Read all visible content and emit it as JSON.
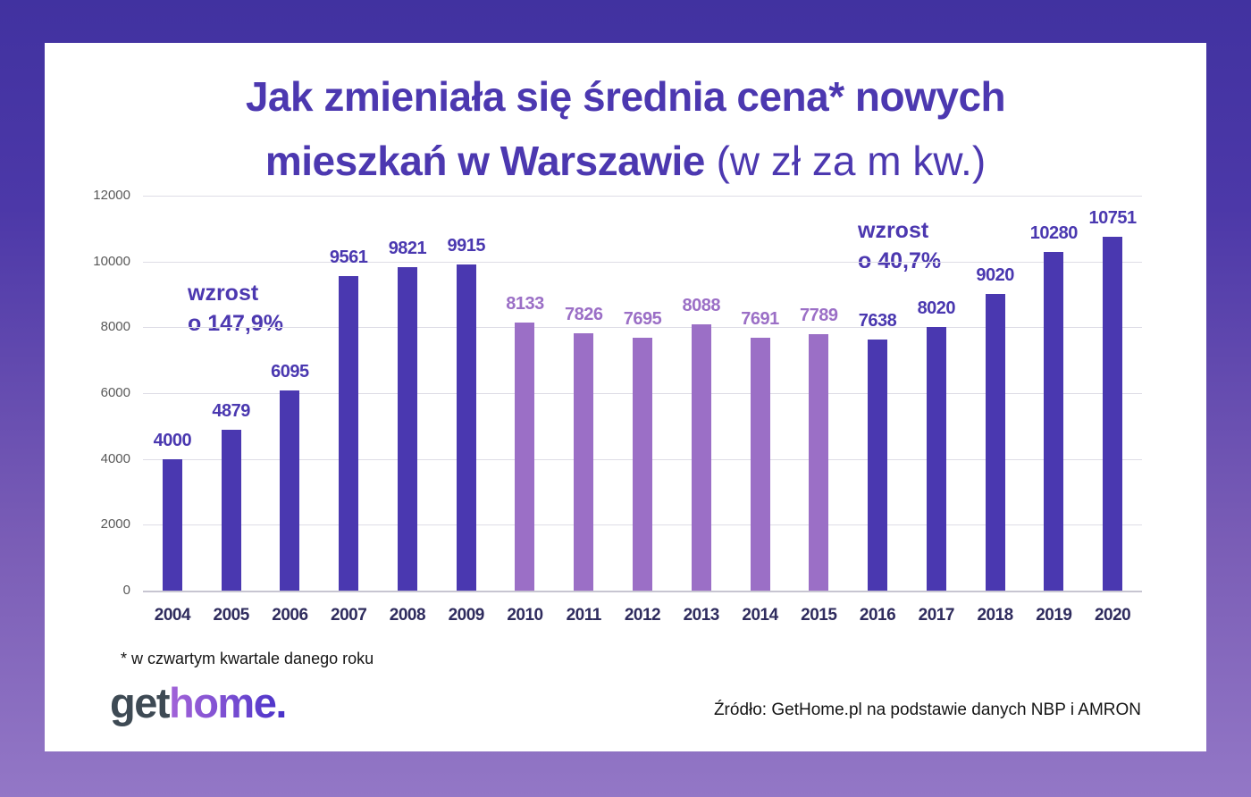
{
  "chart_data": {
    "type": "bar",
    "title": "Jak zmieniała się średnia cena* nowych mieszkań w Warszawie (w zł za m kw.)",
    "title_parts": {
      "line1": "Jak zmieniała się średnia cena* nowych",
      "line2_bold": "mieszkań w Warszawie",
      "line2_light": " (w zł za m kw.)"
    },
    "categories": [
      "2004",
      "2005",
      "2006",
      "2007",
      "2008",
      "2009",
      "2010",
      "2011",
      "2012",
      "2013",
      "2014",
      "2015",
      "2016",
      "2017",
      "2018",
      "2019",
      "2020"
    ],
    "values": [
      4000,
      4879,
      6095,
      9561,
      9821,
      9915,
      8133,
      7826,
      7695,
      8088,
      7691,
      7789,
      7638,
      8020,
      9020,
      10280,
      10751
    ],
    "bar_shades": [
      "dark",
      "dark",
      "dark",
      "dark",
      "dark",
      "dark",
      "light",
      "light",
      "light",
      "light",
      "light",
      "light",
      "dark",
      "dark",
      "dark",
      "dark",
      "dark"
    ],
    "colors": {
      "dark": "#4a38b0",
      "light": "#9b6fc6"
    },
    "ylim": [
      0,
      12000
    ],
    "yticks": [
      0,
      2000,
      4000,
      6000,
      8000,
      10000,
      12000
    ],
    "grid": true,
    "legend": false,
    "xlabel": "",
    "ylabel": "",
    "annotations": [
      {
        "line1": "wzrost",
        "line2": "o 147,9%"
      },
      {
        "line1": "wzrost",
        "line2": "o 40,7%"
      }
    ]
  },
  "footnote": "* w czwartym kwartale danego roku",
  "logo": {
    "part1": "get",
    "part2": "home."
  },
  "source": "Źródło: GetHome.pl na podstawie danych NBP i AMRON",
  "theme": {
    "bar_dark": "#4a38b0",
    "bar_light": "#9b6fc6",
    "title_color": "#4c38b0",
    "background_top": "#4132a0",
    "background_bottom": "#9377c6",
    "logo_get_color": "#3e4a54",
    "card_background": "#ffffff"
  }
}
